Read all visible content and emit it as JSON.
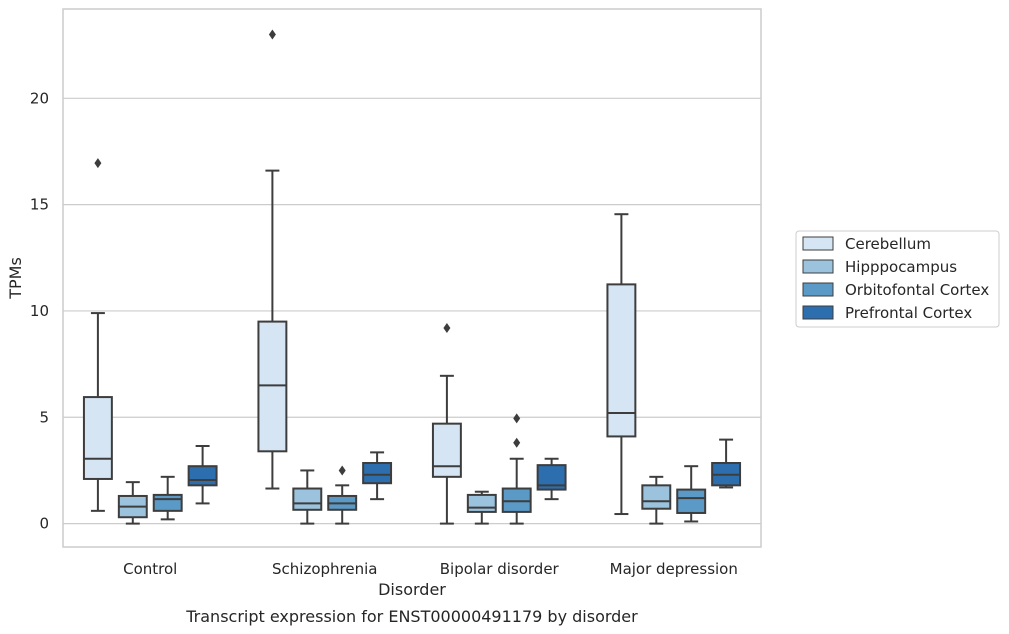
{
  "chart_data": {
    "type": "box",
    "title": "",
    "caption": "Transcript expression for ENST00000491179 by disorder",
    "xlabel": "Disorder",
    "ylabel": "TPMs",
    "ylim": [
      -1.1,
      24.2
    ],
    "yticks": [
      "0",
      "5",
      "10",
      "15",
      "20"
    ],
    "grid": "horizontal",
    "legend_position": "right",
    "categories": [
      "Control",
      "Schizophrenia",
      "Bipolar disorder",
      "Major depression"
    ],
    "series": [
      {
        "name": "Cerebellum",
        "color": "#d6e5f3",
        "boxes": [
          {
            "min": 0.6,
            "q1": 2.1,
            "median": 3.05,
            "q3": 5.95,
            "max": 9.9,
            "outliers": [
              16.95
            ]
          },
          {
            "min": 1.65,
            "q1": 3.4,
            "median": 6.5,
            "q3": 9.5,
            "max": 16.6,
            "outliers": [
              23.0
            ]
          },
          {
            "min": 0.0,
            "q1": 2.2,
            "median": 2.7,
            "q3": 4.7,
            "max": 6.95,
            "outliers": [
              9.2
            ]
          },
          {
            "min": 0.45,
            "q1": 4.1,
            "median": 5.2,
            "q3": 11.25,
            "max": 14.55,
            "outliers": []
          }
        ]
      },
      {
        "name": "Hipppocampus",
        "color": "#9bc3dd",
        "boxes": [
          {
            "min": 0.0,
            "q1": 0.3,
            "median": 0.8,
            "q3": 1.3,
            "max": 1.95,
            "outliers": []
          },
          {
            "min": 0.0,
            "q1": 0.65,
            "median": 0.95,
            "q3": 1.65,
            "max": 2.5,
            "outliers": []
          },
          {
            "min": 0.0,
            "q1": 0.55,
            "median": 0.75,
            "q3": 1.35,
            "max": 1.5,
            "outliers": []
          },
          {
            "min": 0.0,
            "q1": 0.7,
            "median": 1.05,
            "q3": 1.8,
            "max": 2.2,
            "outliers": []
          }
        ]
      },
      {
        "name": "Orbitofontal Cortex",
        "color": "#5b99c6",
        "boxes": [
          {
            "min": 0.2,
            "q1": 0.6,
            "median": 1.15,
            "q3": 1.35,
            "max": 2.2,
            "outliers": []
          },
          {
            "min": 0.0,
            "q1": 0.65,
            "median": 0.95,
            "q3": 1.3,
            "max": 1.8,
            "outliers": [
              2.5
            ]
          },
          {
            "min": 0.0,
            "q1": 0.55,
            "median": 1.05,
            "q3": 1.65,
            "max": 3.05,
            "outliers": [
              4.95,
              3.8
            ]
          },
          {
            "min": 0.1,
            "q1": 0.5,
            "median": 1.2,
            "q3": 1.6,
            "max": 2.7,
            "outliers": []
          }
        ]
      },
      {
        "name": "Prefrontal Cortex",
        "color": "#2c6eae",
        "boxes": [
          {
            "min": 0.95,
            "q1": 1.8,
            "median": 2.05,
            "q3": 2.7,
            "max": 3.65,
            "outliers": []
          },
          {
            "min": 1.15,
            "q1": 1.9,
            "median": 2.3,
            "q3": 2.85,
            "max": 3.35,
            "outliers": []
          },
          {
            "min": 1.15,
            "q1": 1.6,
            "median": 1.8,
            "q3": 2.75,
            "max": 3.05,
            "outliers": []
          },
          {
            "min": 1.7,
            "q1": 1.8,
            "median": 2.3,
            "q3": 2.85,
            "max": 3.95,
            "outliers": []
          }
        ]
      }
    ]
  }
}
